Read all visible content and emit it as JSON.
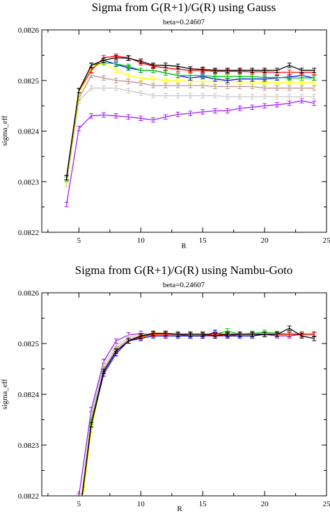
{
  "chart_data": [
    {
      "type": "line",
      "title": "Sigma from G(R+1)/G(R) using Gauss",
      "subtitle": "beta=0.24607",
      "xlabel": "R",
      "ylabel": "sigma_eff",
      "xlim": [
        2,
        25
      ],
      "ylim": [
        0.0822,
        0.0826
      ],
      "xticks": [
        "5",
        "10",
        "15",
        "20",
        "25"
      ],
      "yticks": [
        "0.0822",
        "0.0823",
        "0.0824",
        "0.0825",
        "0.0826"
      ],
      "grid": false,
      "legend": "none",
      "x": [
        4,
        5,
        6,
        7,
        8,
        9,
        10,
        11,
        12,
        13,
        14,
        15,
        16,
        17,
        18,
        19,
        20,
        21,
        22,
        23,
        24
      ],
      "series": [
        {
          "color": "#000000",
          "values": [
            0.082308,
            0.08248,
            0.08253,
            0.08254,
            0.082545,
            0.082544,
            0.082538,
            0.08253,
            0.08253,
            0.082528,
            0.082523,
            0.082522,
            0.08252,
            0.08252,
            0.08252,
            0.08252,
            0.08252,
            0.08252,
            0.08253,
            0.08252,
            0.08252
          ]
        },
        {
          "color": "#ff0000",
          "values": [
            0.082308,
            0.08248,
            0.08252,
            0.082545,
            0.082548,
            0.082545,
            0.082535,
            0.082528,
            0.082525,
            0.082522,
            0.08252,
            0.08252,
            0.082518,
            0.082518,
            0.082518,
            0.082517,
            0.082517,
            0.082516,
            0.082516,
            0.082516,
            0.082516
          ]
        },
        {
          "color": "#00cc00",
          "values": [
            0.082305,
            0.08248,
            0.08253,
            0.082535,
            0.082533,
            0.082528,
            0.08252,
            0.08252,
            0.082515,
            0.08251,
            0.08251,
            0.08251,
            0.082508,
            0.082508,
            0.082508,
            0.082508,
            0.082506,
            0.082506,
            0.082505,
            0.082505,
            0.082505
          ]
        },
        {
          "color": "#0000ff",
          "values": [
            0.082308,
            0.08248,
            0.08253,
            0.08254,
            0.082532,
            0.082525,
            0.08252,
            0.08252,
            0.082515,
            0.08251,
            0.082505,
            0.082508,
            0.082503,
            0.0825,
            0.082503,
            0.082503,
            0.082503,
            0.082505,
            0.082507,
            0.08251,
            0.082505
          ]
        },
        {
          "color": "#ffff00",
          "values": [
            0.0823,
            0.08247,
            0.082525,
            0.082535,
            0.08252,
            0.08251,
            0.082505,
            0.082503,
            0.0825,
            0.0825,
            0.082498,
            0.082498,
            0.082498,
            0.082498,
            0.082497,
            0.082497,
            0.082496,
            0.082496,
            0.082496,
            0.082496,
            0.082496
          ]
        },
        {
          "color": "#bc8f8f",
          "values": [
            0.0823,
            0.082465,
            0.08251,
            0.082505,
            0.0825,
            0.082498,
            0.082495,
            0.08249,
            0.08249,
            0.08249,
            0.08249,
            0.08249,
            0.082488,
            0.082488,
            0.082488,
            0.082488,
            0.082485,
            0.082485,
            0.082485,
            0.082485,
            0.082485
          ]
        },
        {
          "color": "#c8c8c8",
          "values": [
            0.082295,
            0.08246,
            0.082485,
            0.082485,
            0.082485,
            0.08248,
            0.082475,
            0.08247,
            0.08247,
            0.08247,
            0.08247,
            0.08247,
            0.08247,
            0.082468,
            0.082468,
            0.082468,
            0.082468,
            0.082468,
            0.082468,
            0.082468,
            0.082468
          ]
        },
        {
          "color": "#a020f0",
          "values": [
            0.082255,
            0.082405,
            0.08243,
            0.082432,
            0.08243,
            0.082428,
            0.082425,
            0.082422,
            0.082428,
            0.082433,
            0.082435,
            0.082438,
            0.08244,
            0.08244,
            0.082445,
            0.082447,
            0.08245,
            0.082452,
            0.082455,
            0.08246,
            0.082455
          ]
        }
      ]
    },
    {
      "type": "line",
      "title": "Sigma from G(R+1)/G(R) using Nambu-Goto",
      "subtitle": "beta=0.24607",
      "xlabel": "R",
      "ylabel": "sigma_eff",
      "xlim": [
        2,
        25
      ],
      "ylim": [
        0.0822,
        0.0826
      ],
      "xticks": [
        "5",
        "10",
        "15",
        "20",
        "25"
      ],
      "yticks": [
        "0.0822",
        "0.0823",
        "0.0824",
        "0.0825",
        "0.0826"
      ],
      "grid": false,
      "legend": "none",
      "x": [
        5,
        6,
        7,
        8,
        9,
        10,
        11,
        12,
        13,
        14,
        15,
        16,
        17,
        18,
        19,
        20,
        21,
        22,
        23,
        24
      ],
      "series": [
        {
          "color": "#000000",
          "values": [
            0.08215,
            0.08234,
            0.082445,
            0.082485,
            0.082505,
            0.082515,
            0.08252,
            0.08252,
            0.082518,
            0.082518,
            0.082518,
            0.082515,
            0.082518,
            0.082518,
            0.082518,
            0.082518,
            0.082518,
            0.08253,
            0.082515,
            0.08251
          ]
        },
        {
          "color": "#ff0000",
          "values": [
            0.08215,
            0.08234,
            0.082445,
            0.082485,
            0.082505,
            0.082513,
            0.082518,
            0.082518,
            0.082518,
            0.082518,
            0.082518,
            0.082518,
            0.082518,
            0.082518,
            0.082518,
            0.082518,
            0.082518,
            0.082518,
            0.082518,
            0.082518
          ]
        },
        {
          "color": "#00cc00",
          "values": [
            0.08215,
            0.082345,
            0.082445,
            0.082485,
            0.082505,
            0.082513,
            0.082518,
            0.082518,
            0.082518,
            0.082518,
            0.082518,
            0.082518,
            0.082525,
            0.082518,
            0.08252,
            0.082522,
            0.08252,
            0.082518,
            0.082518,
            0.082518
          ]
        },
        {
          "color": "#0000ff",
          "values": [
            0.08215,
            0.08234,
            0.08244,
            0.08248,
            0.082505,
            0.08251,
            0.082515,
            0.082515,
            0.082515,
            0.082515,
            0.082515,
            0.082522,
            0.082515,
            0.082515,
            0.082515,
            0.082518,
            0.082518,
            0.082518,
            0.082518,
            0.082518
          ]
        },
        {
          "color": "#ffff00",
          "values": [
            0.08213,
            0.08233,
            0.082445,
            0.082485,
            0.082505,
            0.082512,
            0.082517,
            0.082518,
            0.082518,
            0.082518,
            0.082518,
            0.082518,
            0.082518,
            0.082518,
            0.082518,
            0.082518,
            0.082518,
            0.082518,
            0.082518,
            0.082518
          ]
        },
        {
          "color": "#bc8f8f",
          "values": [
            0.08214,
            0.08235,
            0.08245,
            0.08249,
            0.082508,
            0.082515,
            0.082518,
            0.082518,
            0.082518,
            0.082518,
            0.082518,
            0.082518,
            0.082518,
            0.082518,
            0.082518,
            0.082518,
            0.082518,
            0.082518,
            0.082518,
            0.082518
          ]
        },
        {
          "color": "#c8c8c8",
          "values": [
            0.08216,
            0.08236,
            0.08246,
            0.082495,
            0.082512,
            0.082518,
            0.08252,
            0.08252,
            0.08252,
            0.08252,
            0.08252,
            0.08252,
            0.08252,
            0.08252,
            0.08252,
            0.08252,
            0.08252,
            0.08252,
            0.08252,
            0.08252
          ]
        },
        {
          "color": "#a020f0",
          "values": [
            0.0822,
            0.08237,
            0.082465,
            0.082505,
            0.082517,
            0.08252,
            0.082518,
            0.082518,
            0.082518,
            0.082515,
            0.082515,
            0.082515,
            0.082515,
            0.082518,
            0.082518,
            0.082518,
            0.082515,
            0.082515,
            0.082518,
            0.082518
          ]
        }
      ]
    }
  ]
}
